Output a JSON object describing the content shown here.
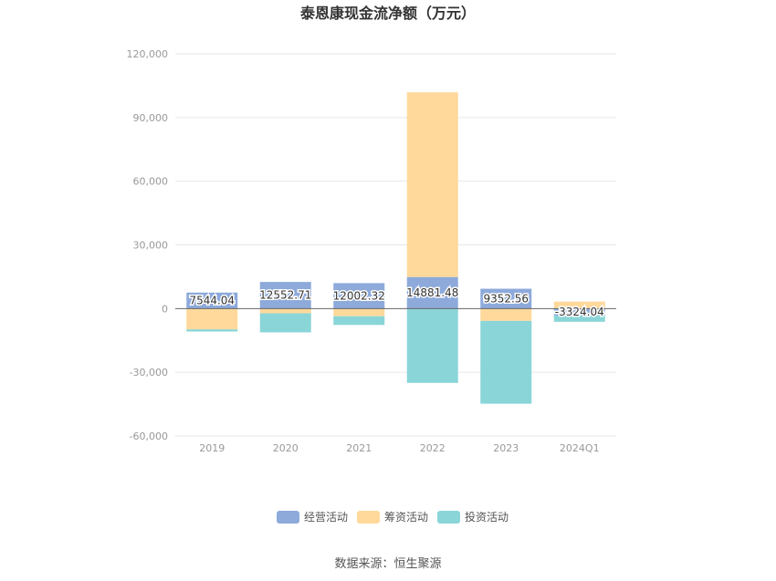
{
  "chart_data": {
    "type": "bar",
    "stacked": true,
    "title": "泰恩康现金流净额（万元）",
    "categories": [
      "2019",
      "2020",
      "2021",
      "2022",
      "2023",
      "2024Q1"
    ],
    "series": [
      {
        "name": "经营活动",
        "color": "#8eaadb",
        "values": [
          7544.04,
          12552.71,
          12002.32,
          14881.48,
          9352.56,
          -3324.04
        ]
      },
      {
        "name": "筹资活动",
        "color": "#ffd99b",
        "values": [
          -9800,
          -2200,
          -3600,
          87000,
          -5800,
          3300
        ]
      },
      {
        "name": "投资活动",
        "color": "#8ad5d8",
        "values": [
          -1000,
          -9000,
          -4100,
          -35000,
          -39000,
          -2900
        ]
      }
    ],
    "data_labels": [
      "7544.04",
      "12552.71",
      "12002.32",
      "14881.48",
      "9352.56",
      "-3324.04"
    ],
    "y_ticks": [
      "120,000",
      "90,000",
      "60,000",
      "30,000",
      "0",
      "-30,000",
      "-60,000"
    ],
    "ylim": [
      -60000,
      120000
    ],
    "grid": true,
    "legend_position": "bottom"
  },
  "source_text": "数据来源：恒生聚源"
}
